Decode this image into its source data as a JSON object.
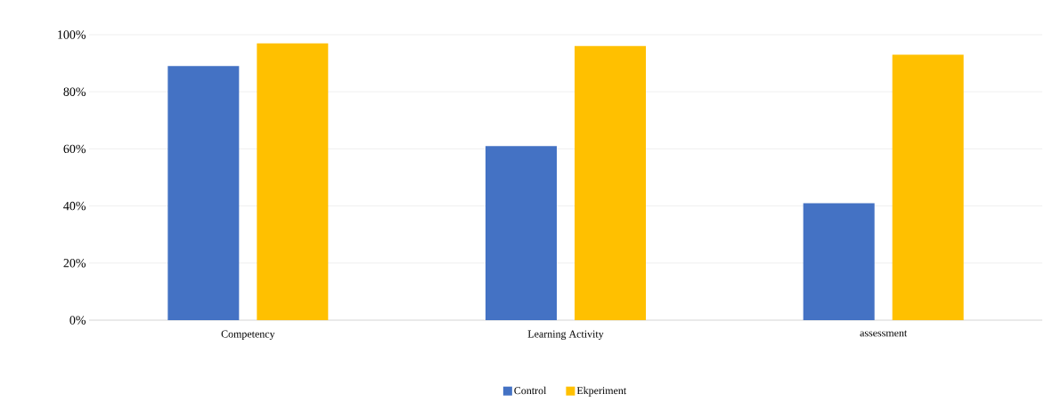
{
  "chart_data": {
    "type": "bar",
    "categories": [
      "Competency",
      "Learning Activity",
      "assessment"
    ],
    "series": [
      {
        "name": "Control",
        "color": "#4472c4",
        "values": [
          89,
          61,
          41
        ]
      },
      {
        "name": "Ekperiment",
        "color": "#ffc000",
        "values": [
          97,
          96,
          93
        ]
      }
    ],
    "ylim": [
      0,
      100
    ],
    "yticks": [
      {
        "value": 0,
        "label": "0%"
      },
      {
        "value": 20,
        "label": "20%"
      },
      {
        "value": 40,
        "label": "40%"
      },
      {
        "value": 60,
        "label": "60%"
      },
      {
        "value": 80,
        "label": "80%"
      },
      {
        "value": 100,
        "label": "100%"
      }
    ],
    "grid": "y",
    "legend": "bottom"
  }
}
